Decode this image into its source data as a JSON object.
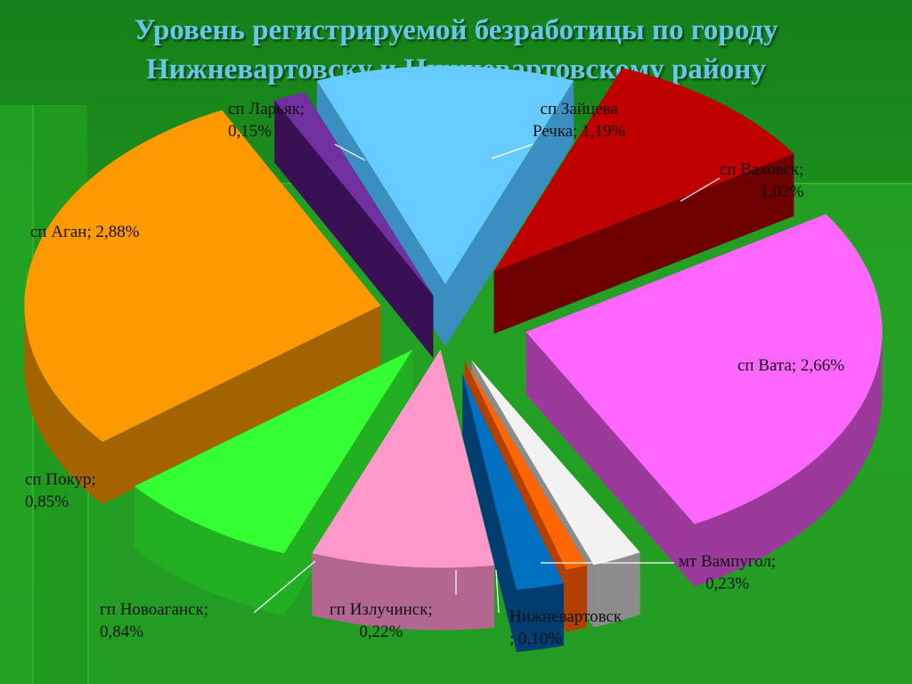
{
  "title": "Уровень регистрируемой безработицы по городу\nНижневартовску и Нижневартовскому району",
  "chart_data": {
    "type": "pie",
    "style": "3d-exploded",
    "title": "Уровень регистрируемой безработицы по городу Нижневартовску и Нижневартовскому району",
    "slices": [
      {
        "name": "сп Зайцева Речка",
        "value": 1.19,
        "label": "сп Зайцева\nРечка; 1,19%",
        "color": "#66ccff",
        "side": "#3a8fc0"
      },
      {
        "name": "сп Ваховск",
        "value": 1.02,
        "label": "сп Ваховск;\n1,02%",
        "color": "#c00000",
        "side": "#6e0000"
      },
      {
        "name": "сп Вата",
        "value": 2.66,
        "label": "сп Вата; 2,66%",
        "color": "#ff66ff",
        "side": "#9c3a9c"
      },
      {
        "name": "мт Вампугол",
        "value": 0.23,
        "label": "мт Вампугол;\n0,23%",
        "color": "#f2f2f2",
        "side": "#8c8c8c"
      },
      {
        "name": "Нижневартовск",
        "value": 0.1,
        "label": "Нижневартовск\n; 0,10%",
        "color": "#ff6600",
        "side": "#b34000"
      },
      {
        "name": "гп Излучинск",
        "value": 0.22,
        "label": "гп Излучинск;\n0,22%",
        "color": "#0070c0",
        "side": "#003d70"
      },
      {
        "name": "гп Новоаганск",
        "value": 0.84,
        "label": "гп Новоаганск;\n0,84%",
        "color": "#ff99cc",
        "side": "#b36690"
      },
      {
        "name": "сп Покур",
        "value": 0.85,
        "label": "сп Покур;\n0,85%",
        "color": "#33ff33",
        "side": "#22b022"
      },
      {
        "name": "сп Аган",
        "value": 2.88,
        "label": "сп Аган; 2,88%",
        "color": "#ff9900",
        "side": "#a36400"
      },
      {
        "name": "сп Ларьяк",
        "value": 0.15,
        "label": "сп Ларьяк;\n0,15%",
        "color": "#7030a0",
        "side": "#3a1055"
      }
    ]
  }
}
